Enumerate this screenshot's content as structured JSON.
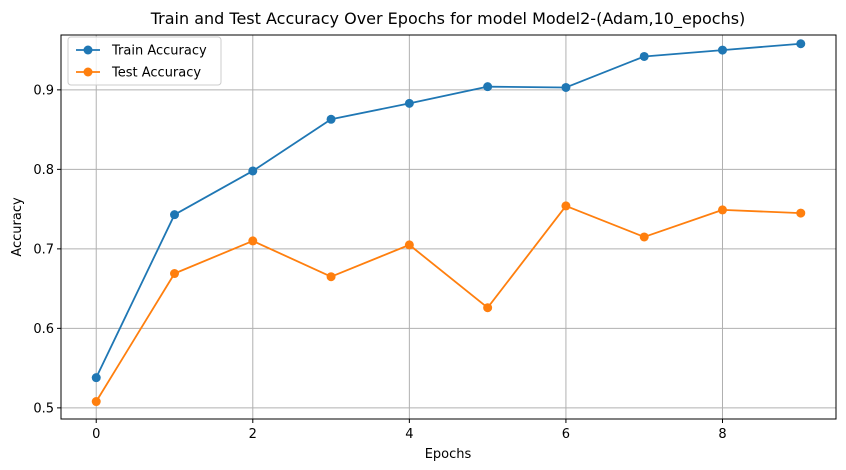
{
  "chart_data": {
    "type": "line",
    "title": "Train and Test Accuracy Over Epochs for model Model2-(Adam,10_epochs)",
    "xlabel": "Epochs",
    "ylabel": "Accuracy",
    "x": [
      0,
      1,
      2,
      3,
      4,
      5,
      6,
      7,
      8,
      9
    ],
    "xlim": [
      -0.45,
      9.45
    ],
    "ylim": [
      0.486,
      0.969
    ],
    "xticks": [
      0,
      2,
      4,
      6,
      8
    ],
    "yticks": [
      0.5,
      0.6,
      0.7,
      0.8,
      0.9
    ],
    "xtick_labels": [
      "0",
      "2",
      "4",
      "6",
      "8"
    ],
    "ytick_labels": [
      "0.5",
      "0.6",
      "0.7",
      "0.8",
      "0.9"
    ],
    "grid": true,
    "legend_position": "top-left",
    "series": [
      {
        "name": "Train Accuracy",
        "color": "#1f77b4",
        "values": [
          0.538,
          0.743,
          0.798,
          0.863,
          0.883,
          0.904,
          0.903,
          0.942,
          0.95,
          0.958
        ]
      },
      {
        "name": "Test Accuracy",
        "color": "#ff7f0e",
        "values": [
          0.508,
          0.669,
          0.71,
          0.665,
          0.705,
          0.626,
          0.754,
          0.715,
          0.749,
          0.745
        ]
      }
    ]
  }
}
